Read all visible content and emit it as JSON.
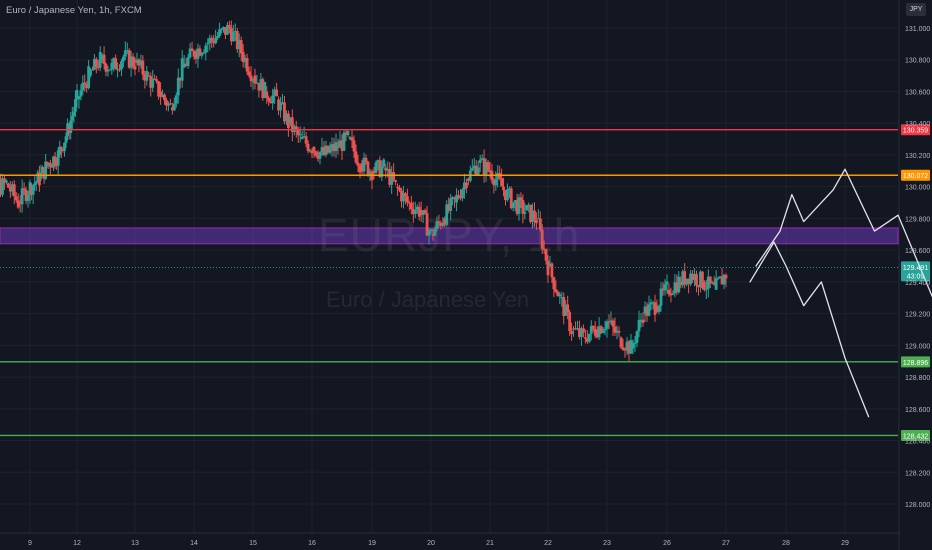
{
  "chart_data": {
    "type": "candlestick",
    "title": "Euro / Japanese Yen, 1h, FXCM",
    "watermark_symbol": "EURJPY, 1h",
    "watermark_description": "Euro / Japanese Yen",
    "currency": "JPY",
    "y_ticks": [
      131.0,
      130.8,
      130.6,
      130.4,
      130.2,
      130.0,
      129.8,
      129.6,
      129.4,
      129.2,
      129.0,
      128.8,
      128.6,
      128.4,
      128.2,
      128.0
    ],
    "y_tick_labels": [
      "131.000",
      "130.800",
      "130.600",
      "130.400",
      "130.200",
      "130.000",
      "129.800",
      "129.600",
      "129.400",
      "129.200",
      "129.000",
      "128.800",
      "128.600",
      "128.400",
      "128.200",
      "128.000"
    ],
    "ylim": [
      127.8,
      131.12
    ],
    "x_ticks": [
      9,
      12,
      13,
      14,
      15,
      16,
      19,
      20,
      21,
      22,
      23,
      26,
      27,
      28,
      29
    ],
    "x_tick_labels": [
      "9",
      "12",
      "13",
      "14",
      "15",
      "16",
      "19",
      "20",
      "21",
      "22",
      "23",
      "26",
      "27",
      "28",
      "29"
    ],
    "candles_close_path": [
      [
        8.0,
        129.95
      ],
      [
        8.2,
        130.05
      ],
      [
        8.4,
        129.98
      ],
      [
        8.6,
        130.02
      ],
      [
        8.8,
        129.9
      ],
      [
        9.0,
        130.0
      ],
      [
        9.2,
        130.05
      ],
      [
        9.4,
        130.15
      ],
      [
        9.6,
        130.2
      ],
      [
        9.8,
        130.35
      ],
      [
        10.0,
        130.55
      ],
      [
        10.2,
        130.7
      ],
      [
        10.4,
        130.8
      ],
      [
        10.6,
        130.75
      ],
      [
        10.8,
        130.82
      ],
      [
        11.0,
        130.78
      ],
      [
        11.2,
        130.7
      ],
      [
        11.4,
        130.6
      ],
      [
        11.6,
        130.5
      ],
      [
        11.8,
        130.75
      ],
      [
        12.0,
        130.85
      ],
      [
        12.2,
        130.9
      ],
      [
        12.4,
        130.95
      ],
      [
        12.6,
        131.0
      ],
      [
        12.8,
        130.85
      ],
      [
        13.0,
        130.7
      ],
      [
        13.2,
        130.6
      ],
      [
        13.4,
        130.55
      ],
      [
        13.6,
        130.4
      ],
      [
        13.8,
        130.3
      ],
      [
        14.0,
        130.25
      ],
      [
        14.2,
        130.2
      ],
      [
        14.4,
        130.25
      ],
      [
        14.6,
        130.3
      ],
      [
        14.8,
        130.15
      ],
      [
        15.0,
        130.1
      ],
      [
        15.2,
        130.12
      ],
      [
        15.4,
        130.0
      ],
      [
        15.6,
        129.9
      ],
      [
        15.8,
        129.85
      ],
      [
        16.0,
        129.7
      ],
      [
        16.2,
        129.8
      ],
      [
        16.4,
        129.9
      ],
      [
        16.6,
        130.05
      ],
      [
        16.8,
        130.15
      ],
      [
        17.0,
        130.1
      ],
      [
        17.2,
        130.0
      ],
      [
        17.4,
        129.9
      ],
      [
        17.6,
        129.85
      ],
      [
        17.8,
        129.8
      ],
      [
        18.0,
        129.5
      ],
      [
        18.2,
        129.3
      ],
      [
        18.4,
        129.1
      ],
      [
        18.6,
        129.05
      ],
      [
        18.8,
        129.1
      ],
      [
        19.0,
        129.15
      ],
      [
        19.2,
        129.05
      ],
      [
        19.4,
        128.98
      ],
      [
        19.6,
        129.2
      ],
      [
        19.8,
        129.25
      ],
      [
        20.0,
        129.35
      ],
      [
        20.2,
        129.4
      ],
      [
        20.4,
        129.45
      ],
      [
        20.6,
        129.4
      ],
      [
        20.8,
        129.35
      ],
      [
        21.0,
        129.45
      ]
    ],
    "horizontal_levels": [
      {
        "price": 130.359,
        "label": "130.359",
        "color": "#f23645"
      },
      {
        "price": 130.072,
        "label": "130.072",
        "color": "#ff9800"
      },
      {
        "price": 128.896,
        "label": "128.896",
        "color": "#4caf50"
      },
      {
        "price": 128.432,
        "label": "128.432",
        "color": "#4caf50"
      }
    ],
    "zone": {
      "from": 129.64,
      "to": 129.74,
      "color": "#673ab7"
    },
    "current_price": {
      "label": "129.491",
      "countdown": "43:09",
      "price": 129.491,
      "color": "#26a69a"
    },
    "projection_paths": [
      [
        [
          21.5,
          129.5
        ],
        [
          21.9,
          129.72
        ],
        [
          22.1,
          129.95
        ],
        [
          22.3,
          129.78
        ],
        [
          22.8,
          129.98
        ],
        [
          23.0,
          130.11
        ],
        [
          23.5,
          129.72
        ],
        [
          23.9,
          129.82
        ],
        [
          24.6,
          129.2
        ],
        [
          25.4,
          129.52
        ],
        [
          26.0,
          128.85
        ],
        [
          26.4,
          128.6
        ]
      ],
      [
        [
          21.4,
          129.4
        ],
        [
          21.8,
          129.65
        ],
        [
          22.0,
          129.5
        ],
        [
          22.3,
          129.25
        ],
        [
          22.6,
          129.4
        ],
        [
          23.0,
          128.92
        ],
        [
          23.4,
          128.55
        ]
      ]
    ]
  }
}
